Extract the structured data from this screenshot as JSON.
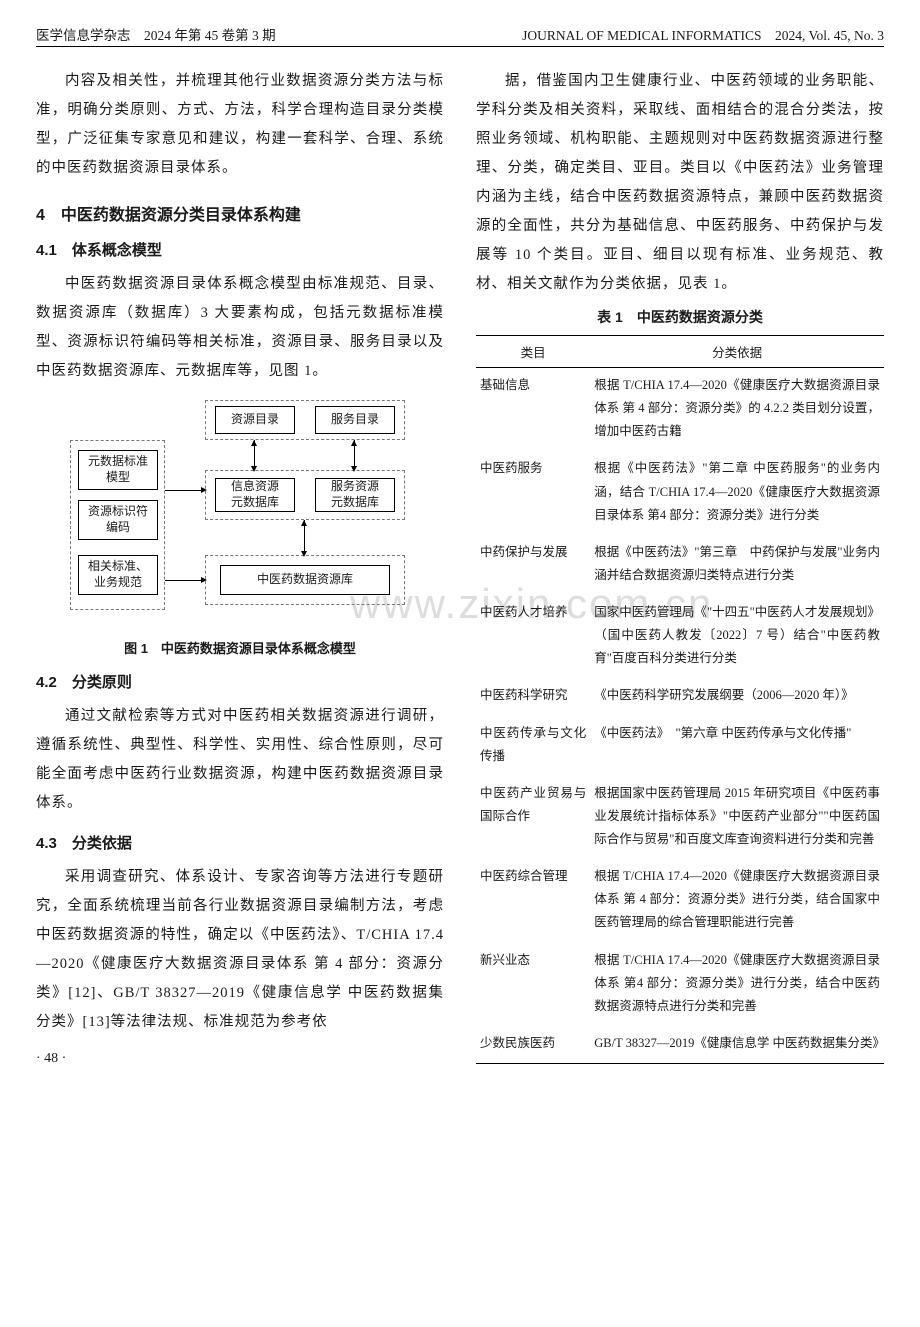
{
  "header": {
    "left": "医学信息学杂志　2024 年第 45 卷第 3 期",
    "right": "JOURNAL OF MEDICAL INFORMATICS　2024, Vol. 45, No. 3"
  },
  "watermark": "www.zixin.com.cn",
  "left_col": {
    "intro_para": "内容及相关性，并梳理其他行业数据资源分类方法与标准，明确分类原则、方式、方法，科学合理构造目录分类模型，广泛征集专家意见和建议，构建一套科学、合理、系统的中医药数据资源目录体系。",
    "h4": "4　中医药数据资源分类目录体系构建",
    "h41": "4.1　体系概念模型",
    "p41": "中医药数据资源目录体系概念模型由标准规范、目录、数据资源库（数据库）3 大要素构成，包括元数据标准模型、资源标识符编码等相关标准，资源目录、服务目录以及中医药数据资源库、元数据库等，见图 1。",
    "fig1_caption": "图 1　中医药数据资源目录体系概念模型",
    "diagram": {
      "boxes": {
        "meta_std": "元数据标准\n模型",
        "res_id": "资源标识符\n编码",
        "rel_std": "相关标准、\n业务规范",
        "res_dir": "资源目录",
        "svc_dir": "服务目录",
        "info_db": "信息资源\n元数据库",
        "svc_db": "服务资源\n元数据库",
        "tcm_db": "中医药数据资源库"
      }
    },
    "h42": "4.2　分类原则",
    "p42": "通过文献检索等方式对中医药相关数据资源进行调研，遵循系统性、典型性、科学性、实用性、综合性原则，尽可能全面考虑中医药行业数据资源，构建中医药数据资源目录体系。",
    "h43": "4.3　分类依据",
    "p43": "采用调查研究、体系设计、专家咨询等方法进行专题研究，全面系统梳理当前各行业数据资源目录编制方法，考虑中医药数据资源的特性，确定以《中医药法》、T/CHIA 17.4—2020《健康医疗大数据资源目录体系 第 4 部分：资源分类》[12]、GB/T 38327—2019《健康信息学 中医药数据集分类》[13]等法律法规、标准规范为参考依"
  },
  "right_col": {
    "cont_para": "据，借鉴国内卫生健康行业、中医药领域的业务职能、学科分类及相关资料，采取线、面相结合的混合分类法，按照业务领域、机构职能、主题规则对中医药数据资源进行整理、分类，确定类目、亚目。类目以《中医药法》业务管理内涵为主线，结合中医药数据资源特点，兼顾中医药数据资源的全面性，共分为基础信息、中医药服务、中药保护与发展等 10 个类目。亚目、细目以现有标准、业务规范、教材、相关文献作为分类依据，见表 1。",
    "table_caption": "表 1　中医药数据资源分类",
    "table": {
      "head": {
        "c1": "类目",
        "c2": "分类依据"
      },
      "rows": [
        {
          "cat": "基础信息",
          "basis": "根据 T/CHIA 17.4—2020《健康医疗大数据资源目录体系 第 4 部分：资源分类》的 4.2.2 类目划分设置，增加中医药古籍"
        },
        {
          "cat": "中医药服务",
          "basis": "根据《中医药法》\"第二章 中医药服务\"的业务内涵，结合 T/CHIA 17.4—2020《健康医疗大数据资源目录体系 第4 部分：资源分类》进行分类"
        },
        {
          "cat": "中药保护与发展",
          "basis": "根据《中医药法》\"第三章　中药保护与发展\"业务内涵并结合数据资源归类特点进行分类"
        },
        {
          "cat": "中医药人才培养",
          "basis": "国家中医药管理局《\"十四五\"中医药人才发展规划》（国中医药人教发〔2022〕7 号）结合\"中医药教育\"百度百科分类进行分类"
        },
        {
          "cat": "中医药科学研究",
          "basis": "《中医药科学研究发展纲要（2006—2020 年）》"
        },
        {
          "cat": "中医药传承与文化传播",
          "basis": "《中医药法》　\"第六章 中医药传承与文化传播\""
        },
        {
          "cat": "中医药产业贸易与国际合作",
          "basis": "根据国家中医药管理局 2015 年研究项目《中医药事业发展统计指标体系》\"中医药产业部分\"\"中医药国际合作与贸易\"和百度文库查询资料进行分类和完善"
        },
        {
          "cat": "中医药综合管理",
          "basis": "根据 T/CHIA 17.4—2020《健康医疗大数据资源目录体系 第 4 部分：资源分类》进行分类，结合国家中医药管理局的综合管理职能进行完善"
        },
        {
          "cat": "新兴业态",
          "basis": "根据 T/CHIA 17.4—2020《健康医疗大数据资源目录体系 第4 部分：资源分类》进行分类，结合中医药数据资源特点进行分类和完善"
        },
        {
          "cat": "少数民族医药",
          "basis": "GB/T 38327—2019《健康信息学 中医药数据集分类》"
        }
      ]
    }
  },
  "page_num": "· 48 ·"
}
